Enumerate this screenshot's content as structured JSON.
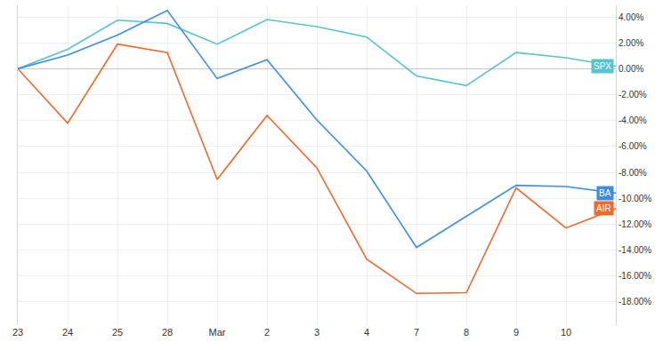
{
  "chart_data": {
    "type": "line",
    "categories": [
      "23",
      "24",
      "25",
      "28",
      "Mar",
      "2",
      "3",
      "4",
      "7",
      "8",
      "9",
      "10",
      null
    ],
    "series": [
      {
        "name": "SPX",
        "color": "#56c3d0",
        "values": [
          0,
          1.5,
          3.75,
          3.5,
          1.9,
          3.8,
          3.25,
          2.45,
          -0.55,
          -1.3,
          1.25,
          0.85,
          0.2
        ]
      },
      {
        "name": "BA",
        "color": "#3a8ee6",
        "values": [
          0,
          1.05,
          2.6,
          4.5,
          -0.75,
          0.7,
          -3.95,
          -7.9,
          -13.8,
          -11.4,
          -9.0,
          -9.1,
          -9.6
        ]
      },
      {
        "name": "AIR",
        "color": "#f0692b",
        "values": [
          0,
          -4.2,
          1.9,
          1.25,
          -8.55,
          -3.6,
          -7.65,
          -14.7,
          -17.35,
          -17.3,
          -9.2,
          -12.3,
          -10.8
        ]
      }
    ],
    "ylim": [
      -19.8,
      4.9
    ],
    "yticks": [
      {
        "value": 4,
        "label": "4.00%"
      },
      {
        "value": 2,
        "label": "2.00%"
      },
      {
        "value": 0,
        "label": "0.00%"
      },
      {
        "value": -2,
        "label": "-2.00%"
      },
      {
        "value": -4,
        "label": "-4.00%"
      },
      {
        "value": -6,
        "label": "-6.00%"
      },
      {
        "value": -8,
        "label": "-8.00%"
      },
      {
        "value": -10,
        "label": "-10.00%"
      },
      {
        "value": -12,
        "label": "-12.00%"
      },
      {
        "value": -14,
        "label": "-14.00%"
      },
      {
        "value": -16,
        "label": "-16.00%"
      },
      {
        "value": -18,
        "label": "-18.00%"
      }
    ],
    "grid": true
  }
}
